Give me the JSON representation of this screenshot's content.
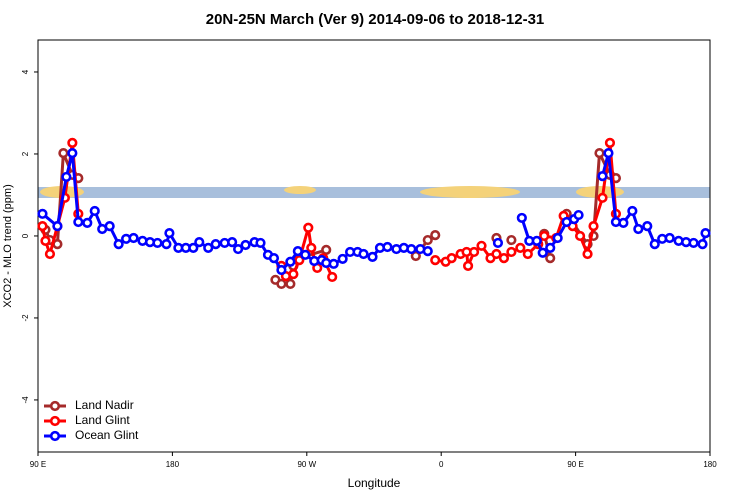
{
  "chart_data": {
    "type": "line",
    "title": "20N-25N March (Ver 9)   2014-09-06 to 2018-12-31",
    "x_label": "Longitude",
    "y_label": "XCO2 - MLO trend (ppm)",
    "xlim": [
      90,
      540
    ],
    "xticks": [
      {
        "value": 90,
        "label": "90 E"
      },
      180,
      {
        "value": 270,
        "label": "90 W"
      },
      {
        "value": 360,
        "label": "0"
      },
      {
        "value": 450,
        "label": "90 E"
      },
      {
        "value": 540,
        "label": "180"
      }
    ],
    "ylim": [
      -5.27,
      4.78
    ],
    "yticks": [
      -4,
      -2,
      0,
      2,
      4
    ],
    "legend": "bottom-left",
    "series": [
      {
        "name": "Land Nadir",
        "color": "#a52a2a",
        "x": [
          95,
          98,
          103,
          107,
          113,
          117,
          null,
          249,
          253,
          259,
          261,
          265,
          283,
          null,
          343,
          351,
          356,
          null,
          397,
          null,
          407,
          null,
          429,
          433,
          null,
          444,
          458,
          462,
          466,
          473,
          477
        ],
        "values": [
          0.15,
          -0.1,
          -0.2,
          2.02,
          1.49,
          1.41,
          null,
          -1.07,
          -1.17,
          -1.17,
          -0.73,
          -0.54,
          -0.34,
          null,
          -0.49,
          -0.1,
          0.02,
          null,
          -0.05,
          null,
          -0.1,
          null,
          0.05,
          -0.54,
          null,
          0.54,
          -0.2,
          0.0,
          2.02,
          1.49,
          1.41
        ]
      },
      {
        "name": "Land Glint",
        "color": "#ff0000",
        "x": [
          93,
          95,
          98,
          103,
          108,
          113,
          117,
          null,
          253,
          256,
          261,
          265,
          271,
          273,
          277,
          281,
          287,
          null,
          356,
          363,
          367,
          373,
          377,
          378,
          382,
          387,
          393,
          397,
          402,
          407,
          413,
          418,
          425,
          429,
          437,
          442,
          448,
          453,
          458,
          462,
          468,
          473,
          477
        ],
        "values": [
          0.24,
          -0.12,
          -0.44,
          0.24,
          0.93,
          2.27,
          0.54,
          null,
          -0.73,
          -0.98,
          -0.93,
          -0.59,
          0.2,
          -0.29,
          -0.78,
          -0.54,
          -1.0,
          null,
          -0.59,
          -0.63,
          -0.54,
          -0.44,
          -0.39,
          -0.73,
          -0.39,
          -0.24,
          -0.54,
          -0.44,
          -0.54,
          -0.39,
          -0.29,
          -0.44,
          -0.2,
          0.0,
          -0.05,
          0.49,
          0.24,
          0.0,
          -0.44,
          0.24,
          0.93,
          2.27,
          0.54
        ]
      },
      {
        "name": "Ocean Glint",
        "color": "#0000ff",
        "x": [
          93,
          103,
          109,
          113,
          117,
          123,
          128,
          133,
          138,
          144,
          149,
          154,
          160,
          165,
          170,
          176,
          178,
          184,
          189,
          194,
          198,
          204,
          209,
          215,
          220,
          224,
          229,
          235,
          239,
          244,
          248,
          253,
          259,
          264,
          269,
          275,
          280,
          283,
          288,
          294,
          299,
          304,
          308,
          314,
          319,
          324,
          330,
          335,
          340,
          346,
          351,
          null,
          398,
          null,
          414,
          419,
          424,
          428,
          433,
          438,
          444,
          449,
          452,
          null,
          468,
          472,
          477,
          482,
          488,
          492,
          498,
          503,
          508,
          513,
          519,
          524,
          529,
          535,
          537
        ],
        "values": [
          0.54,
          0.24,
          1.44,
          2.02,
          0.34,
          0.32,
          0.61,
          0.17,
          0.24,
          -0.2,
          -0.07,
          -0.05,
          -0.12,
          -0.15,
          -0.17,
          -0.2,
          0.07,
          -0.29,
          -0.29,
          -0.29,
          -0.15,
          -0.29,
          -0.2,
          -0.17,
          -0.15,
          -0.32,
          -0.22,
          -0.15,
          -0.17,
          -0.46,
          -0.54,
          -0.83,
          -0.63,
          -0.37,
          -0.46,
          -0.61,
          -0.59,
          -0.66,
          -0.68,
          -0.56,
          -0.39,
          -0.39,
          -0.44,
          -0.51,
          -0.29,
          -0.27,
          -0.32,
          -0.29,
          -0.32,
          -0.32,
          -0.37,
          null,
          -0.17,
          null,
          0.44,
          -0.12,
          -0.12,
          -0.41,
          -0.29,
          -0.05,
          0.34,
          0.41,
          0.51,
          null,
          1.46,
          2.02,
          0.34,
          0.32,
          0.61,
          0.17,
          0.24,
          -0.2,
          -0.07,
          -0.05,
          -0.12,
          -0.15,
          -0.17,
          -0.2,
          0.07
        ]
      }
    ]
  }
}
